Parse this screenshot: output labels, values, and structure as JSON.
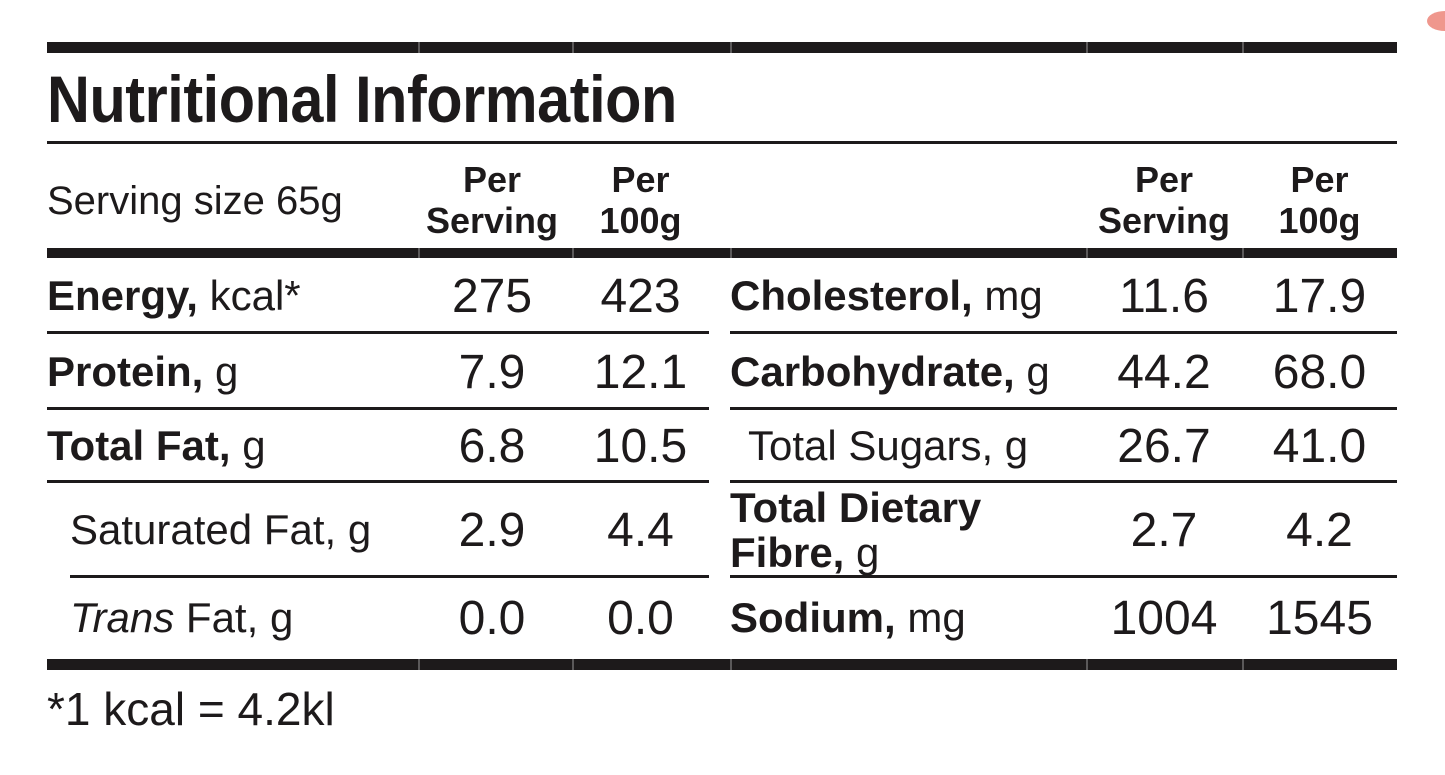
{
  "title": "Nutritional Information",
  "header": {
    "serving_size_label": "Serving size 65g",
    "per_serving": {
      "line1": "Per",
      "line2": "Serving"
    },
    "per_100g": {
      "line1": "Per",
      "line2": "100g"
    }
  },
  "table": {
    "left_rows": [
      {
        "bold": "Energy,",
        "text": " kcal*",
        "per_serving": "275",
        "per_100g": "423"
      },
      {
        "bold": "Protein,",
        "text": " g",
        "per_serving": "7.9",
        "per_100g": "12.1"
      },
      {
        "bold": "Total Fat,",
        "text": " g",
        "per_serving": "6.8",
        "per_100g": "10.5"
      },
      {
        "text": "Saturated Fat, g",
        "per_serving": "2.9",
        "per_100g": "4.4"
      },
      {
        "italic": "Trans",
        "text": " Fat, g",
        "per_serving": "0.0",
        "per_100g": "0.0"
      }
    ],
    "right_rows": [
      {
        "bold": "Cholesterol,",
        "text": " mg",
        "per_serving": "11.6",
        "per_100g": "17.9"
      },
      {
        "bold": "Carbohydrate,",
        "text": " g",
        "per_serving": "44.2",
        "per_100g": "68.0"
      },
      {
        "text": "Total Sugars, g",
        "per_serving": "26.7",
        "per_100g": "41.0"
      },
      {
        "bold": "Total Dietary Fibre,",
        "text": " g",
        "per_serving": "2.7",
        "per_100g": "4.2"
      },
      {
        "bold": "Sodium,",
        "text": " mg",
        "per_serving": "1004",
        "per_100g": "1545"
      }
    ]
  },
  "footnote": "*1 kcal = 4.2kl",
  "colors": {
    "ink": "#1d1a1b",
    "background": "#ffffff",
    "decorative_blob": "#ef978d"
  }
}
